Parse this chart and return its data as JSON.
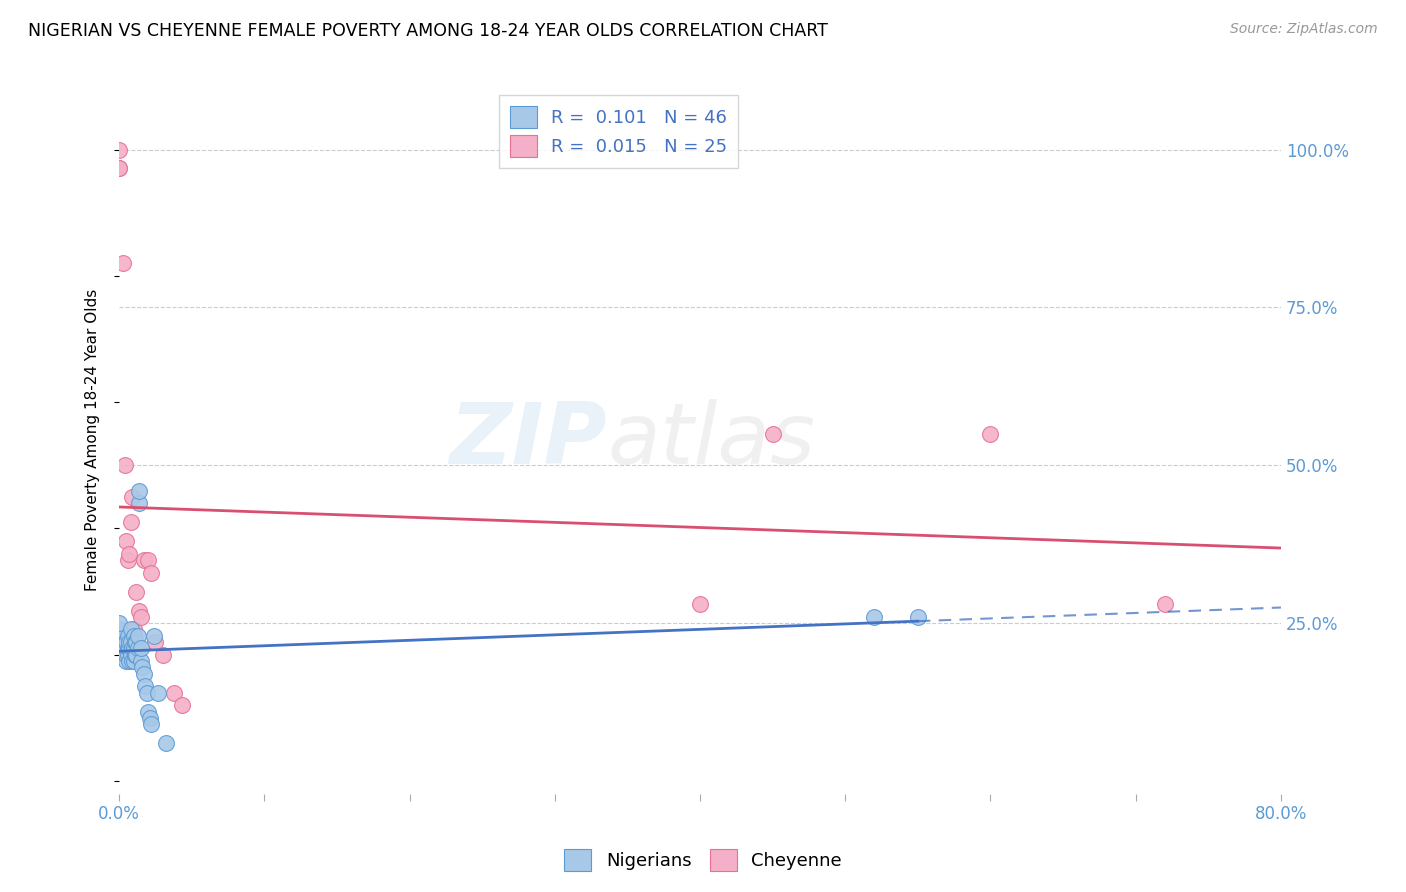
{
  "title": "NIGERIAN VS CHEYENNE FEMALE POVERTY AMONG 18-24 YEAR OLDS CORRELATION CHART",
  "source": "Source: ZipAtlas.com",
  "ylabel": "Female Poverty Among 18-24 Year Olds",
  "xlim": [
    0.0,
    0.8
  ],
  "ylim": [
    -0.02,
    1.1
  ],
  "R_nigerian": 0.101,
  "N_nigerian": 46,
  "R_cheyenne": 0.015,
  "N_cheyenne": 25,
  "watermark_zip": "ZIP",
  "watermark_atlas": "atlas",
  "nigerian_color": "#a8c8e8",
  "nigerian_edge": "#5b9bd5",
  "cheyenne_color": "#f4b0c8",
  "cheyenne_edge": "#e87090",
  "trend_nigerian_color": "#4472c4",
  "trend_cheyenne_color": "#d94f70",
  "nigerian_x": [
    0.0,
    0.0,
    0.0,
    0.0,
    0.0,
    0.004,
    0.004,
    0.005,
    0.005,
    0.005,
    0.006,
    0.006,
    0.006,
    0.007,
    0.007,
    0.007,
    0.008,
    0.008,
    0.008,
    0.009,
    0.009,
    0.01,
    0.01,
    0.01,
    0.011,
    0.011,
    0.012,
    0.012,
    0.013,
    0.013,
    0.014,
    0.014,
    0.015,
    0.015,
    0.016,
    0.017,
    0.018,
    0.019,
    0.02,
    0.021,
    0.022,
    0.024,
    0.027,
    0.032,
    0.52,
    0.55
  ],
  "nigerian_y": [
    0.21,
    0.22,
    0.23,
    0.24,
    0.25,
    0.2,
    0.21,
    0.19,
    0.2,
    0.22,
    0.2,
    0.21,
    0.23,
    0.19,
    0.21,
    0.22,
    0.2,
    0.22,
    0.24,
    0.19,
    0.21,
    0.19,
    0.21,
    0.23,
    0.2,
    0.22,
    0.2,
    0.22,
    0.21,
    0.23,
    0.44,
    0.46,
    0.19,
    0.21,
    0.18,
    0.17,
    0.15,
    0.14,
    0.11,
    0.1,
    0.09,
    0.23,
    0.14,
    0.06,
    0.26,
    0.26
  ],
  "cheyenne_x": [
    0.0,
    0.0,
    0.0,
    0.003,
    0.004,
    0.005,
    0.006,
    0.007,
    0.008,
    0.009,
    0.01,
    0.012,
    0.014,
    0.015,
    0.017,
    0.02,
    0.022,
    0.025,
    0.03,
    0.038,
    0.043,
    0.4,
    0.45,
    0.6,
    0.72
  ],
  "cheyenne_y": [
    0.97,
    0.97,
    1.0,
    0.82,
    0.5,
    0.38,
    0.35,
    0.36,
    0.41,
    0.45,
    0.24,
    0.3,
    0.27,
    0.26,
    0.35,
    0.35,
    0.33,
    0.22,
    0.2,
    0.14,
    0.12,
    0.28,
    0.55,
    0.55,
    0.28
  ]
}
